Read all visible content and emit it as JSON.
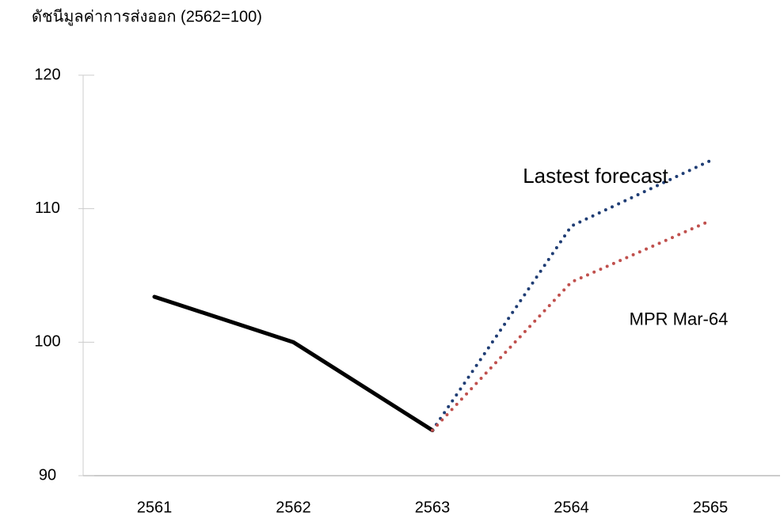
{
  "chart_data": {
    "type": "line",
    "y_label": "ดัชนีมูลค่าการส่งออก (2562=100)",
    "categories": [
      "2561",
      "2562",
      "2563",
      "2564",
      "2565"
    ],
    "series": [
      {
        "color": "#000000",
        "style": "solid",
        "values": [
          103.4,
          100,
          93.4,
          null,
          null
        ]
      },
      {
        "name": "Lastest forecast",
        "color": "#1f3d74",
        "label_color": "#3e66a0",
        "style": "dotted",
        "values": [
          null,
          null,
          93.4,
          108.7,
          113.6
        ]
      },
      {
        "name": "MPR Mar-64",
        "color": "#c0504d",
        "label_color": "#c0282d",
        "style": "dotted",
        "values": [
          null,
          null,
          93.4,
          104.5,
          109.1
        ]
      }
    ],
    "ylim": [
      90,
      120
    ],
    "yticks": [
      90,
      100,
      110,
      120
    ],
    "grid": false
  }
}
